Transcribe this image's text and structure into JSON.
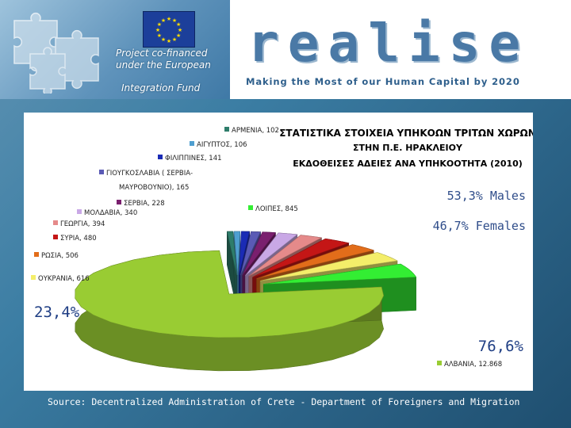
{
  "header": {
    "cofinance_line1": "Project co-financed",
    "cofinance_line2": "under the European",
    "cofinance_line3": "Integration Fund",
    "logo": "realise",
    "tagline": "Making the Most of our Human Capital by 2020"
  },
  "source": "Source: Decentralized Administration of Crete - Department of Foreigners and Migration",
  "colors": {
    "accent": "#4a79a6",
    "albania": "#99cc33",
    "others": "#33ee33"
  },
  "chart_data": {
    "type": "pie",
    "title_lines": [
      "ΣΤΑΤΙΣΤΙΚΑ ΣΤΟΙΧΕΙΑ ΥΠΗΚΟΩΝ ΤΡΙΤΩΝ ΧΩΡΩΝ",
      "ΣΤΗΝ Π.Ε. ΗΡΑΚΛΕΙΟΥ",
      "ΕΚΔΟΘΕΙΣΕΣ ΑΔΕΙΕΣ ΑΝΑ ΥΠΗΚΟΟΤΗΤΑ (2010)"
    ],
    "annotations": {
      "males": "53,3% Males",
      "females": "46,7% Females",
      "others_pct": "23,4%",
      "albania_pct": "76,6%"
    },
    "slices": [
      {
        "label": "ΑΡΜΕΝΙΑ, 102",
        "value": 102,
        "color": "#2e7d6b"
      },
      {
        "label": "ΑΙΓΥΠΤΟΣ, 106",
        "value": 106,
        "color": "#4f9fd0"
      },
      {
        "label": "ΦΙΛΙΠΠΙΝΕΣ, 141",
        "value": 141,
        "color": "#1a2bb5"
      },
      {
        "label": "ΓΙΟΥΓΚΟΣΛΑΒΙΑ ( ΣΕΡΒΙΑ-ΜΑΥΡΟΒΟΥΝΙΟ), 165",
        "label_line1": "ΓΙΟΥΓΚΟΣΛΑΒΙΑ ( ΣΕΡΒΙΑ-",
        "label_line2": "ΜΑΥΡΟΒΟΥΝΙΟ), 165",
        "value": 165,
        "color": "#5a5ab5"
      },
      {
        "label": "ΣΕΡΒΙΑ, 228",
        "value": 228,
        "color": "#7a1f6e"
      },
      {
        "label": "ΜΟΛΔΑΒΙΑ, 340",
        "value": 340,
        "color": "#c9a8e6"
      },
      {
        "label": "ΓΕΩΡΓΙΑ, 394",
        "value": 394,
        "color": "#e58a8a"
      },
      {
        "label": "ΣΥΡΙΑ, 480",
        "value": 480,
        "color": "#c41616"
      },
      {
        "label": "ΡΩΣΙΑ, 506",
        "value": 506,
        "color": "#e26d1a"
      },
      {
        "label": "ΟΥΚΡΑΝΙΑ, 616",
        "value": 616,
        "color": "#f4ee6a"
      },
      {
        "label": "ΛΟΙΠΕΣ, 845",
        "value": 845,
        "color": "#33ee33"
      },
      {
        "label": "ΑΛΒΑΝΙΑ, 12.868",
        "value": 12868,
        "color": "#99cc33"
      }
    ]
  }
}
